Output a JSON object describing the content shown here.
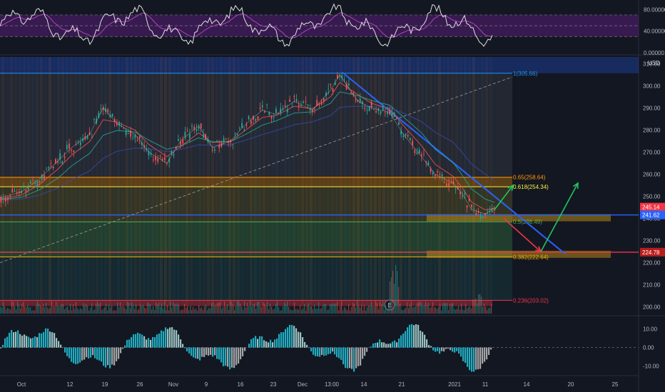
{
  "chart_data": {
    "type": "line",
    "currency": "USD",
    "rsi_panel": {
      "ticks": [
        "80.00000",
        "40.00000",
        "0.00000"
      ]
    },
    "price_panel": {
      "ticks": [
        "310.00",
        "300.00",
        "290.00",
        "280.00",
        "270.00",
        "260.00",
        "250.00",
        "240.00",
        "230.00",
        "220.00",
        "210.00",
        "200.00"
      ],
      "ylim": [
        197,
        313
      ]
    },
    "oscillator_panel": {
      "ticks": [
        "10.00",
        "0.00",
        "-10.00"
      ]
    },
    "x_ticks": [
      "Oct",
      "12",
      "19",
      "26",
      "Nov",
      "9",
      "16",
      "23",
      "Dec",
      "13:00",
      "14",
      "21",
      "2021",
      "11",
      "14",
      "20",
      "25"
    ],
    "fib_levels": [
      {
        "label": "1(305.66)",
        "value": 305.66,
        "color": "#2196f3"
      },
      {
        "label": "0.65(258.64)",
        "value": 258.64,
        "color": "#ff9800"
      },
      {
        "label": "0.618(254.34)",
        "value": 254.34,
        "color": "#ffeb3b"
      },
      {
        "label": "0.5(238.49)",
        "value": 238.49,
        "color": "#4caf50"
      },
      {
        "label": "0.382(222.64)",
        "value": 222.64,
        "color": "#f7b500"
      },
      {
        "label": "0.236(203.02)",
        "value": 203.02,
        "color": "#f23645"
      }
    ],
    "price_badges": [
      {
        "label": "245.14",
        "value": 245.14,
        "color": "#f23645"
      },
      {
        "label": "241.62",
        "value": 241.62,
        "color": "#2962ff"
      },
      {
        "label": "224.78",
        "value": 224.78,
        "color": "#b71c1c"
      }
    ],
    "horizontal_lines": [
      {
        "value": 241.62,
        "color": "#2962ff"
      },
      {
        "value": 224.78,
        "color": "#f23645"
      }
    ],
    "earnings_marker": "E",
    "price_series": [
      [
        "Sep 24",
        248
      ],
      [
        "Oct 1",
        252
      ],
      [
        "Oct 5",
        258
      ],
      [
        "Oct 9",
        266
      ],
      [
        "Oct 12",
        272
      ],
      [
        "Oct 16",
        278
      ],
      [
        "Oct 19",
        290
      ],
      [
        "Oct 22",
        283
      ],
      [
        "Oct 26",
        278
      ],
      [
        "Oct 29",
        270
      ],
      [
        "Nov 2",
        265
      ],
      [
        "Nov 5",
        275
      ],
      [
        "Nov 9",
        282
      ],
      [
        "Nov 12",
        272
      ],
      [
        "Nov 16",
        275
      ],
      [
        "Nov 19",
        282
      ],
      [
        "Nov 23",
        289
      ],
      [
        "Nov 26",
        287
      ],
      [
        "Nov 30",
        293
      ],
      [
        "Dec 4",
        289
      ],
      [
        "Dec 8",
        298
      ],
      [
        "Dec 10",
        305
      ],
      [
        "Dec 14",
        293
      ],
      [
        "Dec 17",
        290
      ],
      [
        "Dec 21",
        288
      ],
      [
        "Dec 24",
        278
      ],
      [
        "Dec 28",
        268
      ],
      [
        "Dec 31",
        260
      ],
      [
        "Jan 4",
        256
      ],
      [
        "Jan 6",
        251
      ],
      [
        "Jan 8",
        244
      ],
      [
        "Jan 11",
        242
      ],
      [
        "Jan 12",
        245
      ]
    ],
    "projections": [
      {
        "color": "#22c55e",
        "points": [
          [
            "Jan 12",
            244
          ],
          [
            "Jan 14",
            255
          ]
        ]
      },
      {
        "color": "#f23645",
        "points": [
          [
            "Jan 13",
            240
          ],
          [
            "Jan 17",
            225
          ]
        ]
      },
      {
        "color": "#22c55e",
        "points": [
          [
            "Jan 17",
            225
          ],
          [
            "Jan 21",
            256
          ]
        ]
      }
    ]
  }
}
